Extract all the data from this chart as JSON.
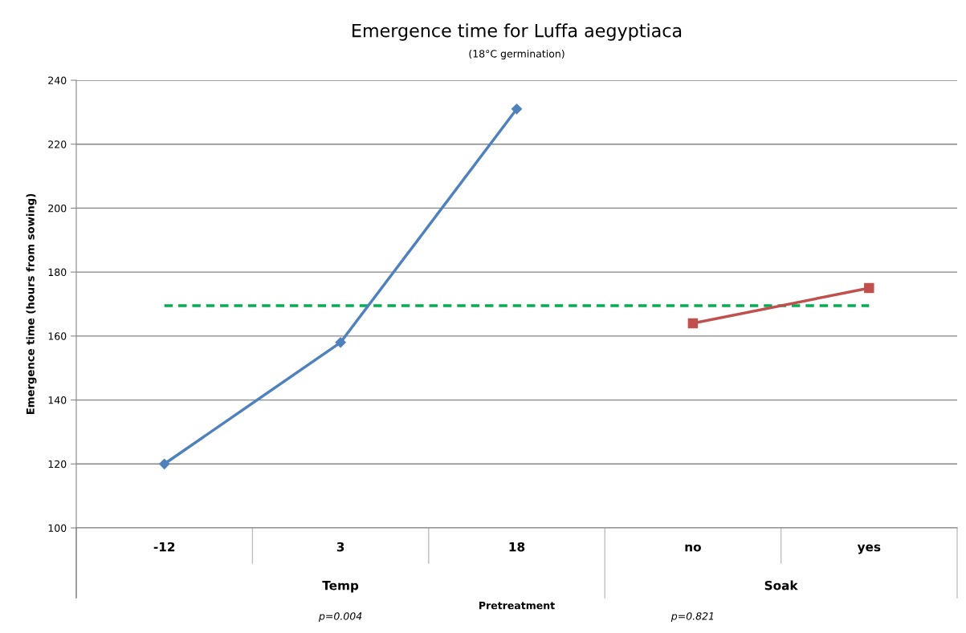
{
  "chart_data": {
    "type": "line",
    "title": "Emergence time for Luffa aegyptiaca",
    "subtitle": "(18°C germination)",
    "xlabel": "Pretreatment",
    "ylabel": "Emergence time (hours from sowing)",
    "categories": [
      "-12",
      "3",
      "18",
      "no",
      "yes"
    ],
    "series": [
      {
        "color": "#4f81bd",
        "marker": "diamond",
        "values": [
          120,
          158,
          231,
          null,
          null
        ]
      },
      {
        "color": "#c0504d",
        "marker": "square",
        "values": [
          null,
          null,
          null,
          164,
          175
        ]
      }
    ],
    "ylim": [
      100,
      240
    ],
    "yticks": [
      100,
      120,
      140,
      160,
      180,
      200,
      220,
      240
    ],
    "grid": "y",
    "legend": false,
    "ref_lines": [
      {
        "axis": "y",
        "value": 169.5,
        "color": "#00b050",
        "line_style": "dashed"
      }
    ],
    "annotations": [
      "Temp",
      "Soak",
      "p=0.004",
      "p=0.821"
    ]
  }
}
